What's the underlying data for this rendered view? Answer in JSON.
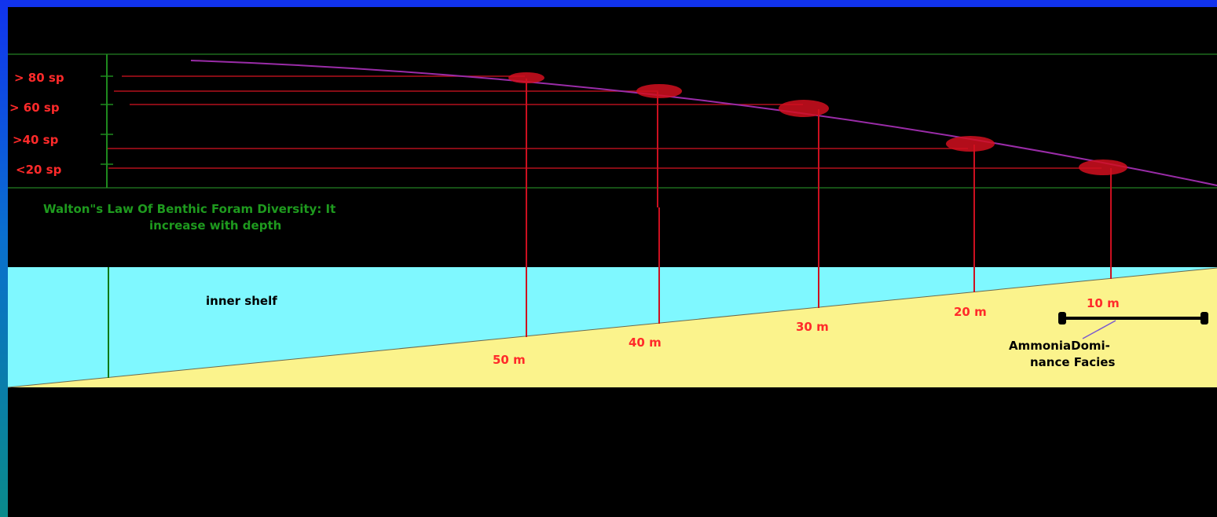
{
  "diversity_levels": [
    {
      "label": "> 80 sp"
    },
    {
      "label": "> 60 sp"
    },
    {
      "label": ">40 sp"
    },
    {
      "label": "<20 sp"
    }
  ],
  "law_caption": {
    "line1": "Walton\"s Law Of Benthic Foram Diversity: It",
    "line2": "increase with depth"
  },
  "zone_label": "inner shelf",
  "depth_markers": [
    {
      "label": "50 m"
    },
    {
      "label": "40 m"
    },
    {
      "label": "30 m"
    },
    {
      "label": "20 m"
    },
    {
      "label": "10 m"
    }
  ],
  "facies": {
    "line1": "AmmoniaDomi-",
    "line2": "nance Facies"
  },
  "colors": {
    "background": "#000000",
    "water": "#7ff8ff",
    "sediment": "#fbf38c",
    "marker_red": "#d10f1f",
    "curve_purple": "#9a2ca8",
    "grid_green": "#1e6a1e",
    "frame_blue": "#1133ee"
  }
}
